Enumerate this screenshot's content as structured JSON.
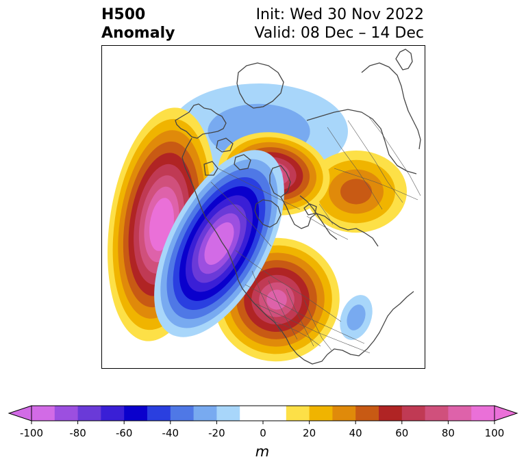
{
  "title": {
    "left_line1": "H500",
    "left_line2": "Anomaly",
    "right_line1": "Init: Wed 30 Nov 2022",
    "right_line2": "Valid: 08 Dec – 14 Dec"
  },
  "map": {
    "projection": "north-polar-stereographic",
    "features": [
      {
        "name": "north-pacific-ridge",
        "sign": "positive",
        "peak": 100
      },
      {
        "name": "western-north-america-trough",
        "sign": "negative",
        "peak": -100
      },
      {
        "name": "eastern-north-america-ridge",
        "sign": "positive",
        "peak": 80
      },
      {
        "name": "polar-ridge",
        "sign": "positive",
        "peak": 80
      },
      {
        "name": "siberian-ridge",
        "sign": "positive",
        "peak": 40
      },
      {
        "name": "arctic-trough",
        "sign": "negative",
        "peak": -20
      },
      {
        "name": "atlantic-trough",
        "sign": "negative",
        "peak": -20
      }
    ]
  },
  "colorbar": {
    "levels": [
      -100,
      -90,
      -80,
      -70,
      -60,
      -50,
      -40,
      -30,
      -20,
      -10,
      10,
      20,
      30,
      40,
      50,
      60,
      70,
      80,
      90,
      100
    ],
    "colors": [
      "#d26be6",
      "#9c4fe0",
      "#6a3ad8",
      "#3a1fd6",
      "#0a00cc",
      "#2a3fe0",
      "#4f78e6",
      "#78aaf0",
      "#a8d6fa",
      "#ffffff",
      "#fde047",
      "#f0b400",
      "#e08a0a",
      "#c85a14",
      "#b02424",
      "#c03a54",
      "#d0507c",
      "#de62aa",
      "#ea70d8"
    ],
    "tick_labels": [
      "-100",
      "-80",
      "-60",
      "-40",
      "-20",
      "0",
      "20",
      "40",
      "60",
      "80",
      "100"
    ],
    "unit": "m",
    "extend": "both"
  }
}
